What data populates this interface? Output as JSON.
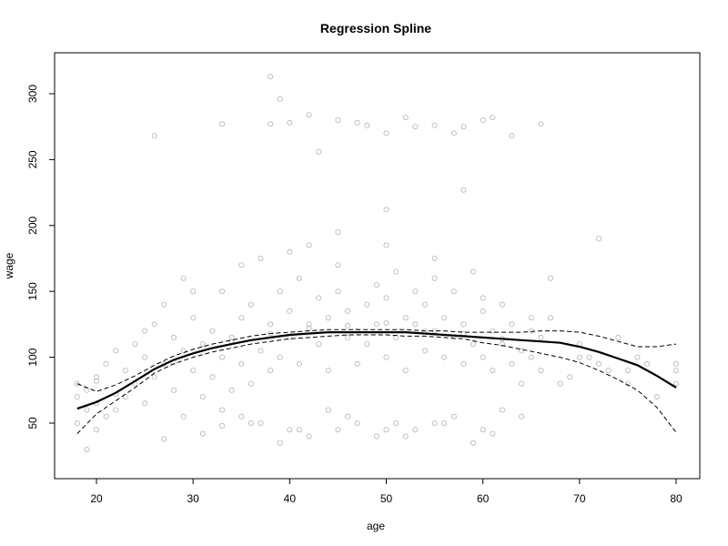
{
  "chart_data": {
    "type": "scatter",
    "title": "Regression Spline",
    "xlabel": "age",
    "ylabel": "wage",
    "xlim": [
      18,
      80
    ],
    "ylim": [
      20,
      320
    ],
    "x_ticks": [
      20,
      30,
      40,
      50,
      60,
      70,
      80
    ],
    "y_ticks": [
      50,
      100,
      150,
      200,
      250,
      300
    ],
    "grid": false,
    "legend": "none",
    "point_color": "#b3b3b3",
    "line_color": "#000000",
    "scatter_sample": {
      "x": [
        18,
        18,
        18,
        19,
        19,
        19,
        20,
        20,
        20,
        21,
        21,
        22,
        22,
        23,
        23,
        24,
        24,
        25,
        25,
        26,
        26,
        27,
        27,
        28,
        28,
        29,
        29,
        30,
        30,
        31,
        31,
        32,
        32,
        33,
        33,
        34,
        34,
        35,
        35,
        36,
        36,
        37,
        37,
        38,
        38,
        39,
        39,
        40,
        40,
        41,
        41,
        42,
        42,
        43,
        43,
        44,
        44,
        45,
        45,
        46,
        46,
        47,
        47,
        48,
        48,
        49,
        49,
        50,
        50,
        51,
        51,
        52,
        52,
        53,
        53,
        54,
        54,
        55,
        55,
        56,
        56,
        57,
        57,
        58,
        58,
        59,
        59,
        60,
        60,
        61,
        61,
        62,
        62,
        63,
        63,
        64,
        64,
        65,
        65,
        66,
        66,
        67,
        68,
        69,
        70,
        71,
        72,
        73,
        74,
        75,
        76,
        77,
        78,
        80,
        80,
        80,
        26,
        33,
        38,
        38,
        39,
        40,
        42,
        43,
        45,
        47,
        48,
        50,
        52,
        53,
        55,
        57,
        58,
        60,
        61,
        63,
        66,
        50,
        58,
        72,
        67,
        33,
        35,
        37,
        40,
        42,
        45,
        47,
        50,
        52,
        55,
        57,
        60,
        62,
        27,
        29,
        31,
        33,
        36,
        39,
        41,
        44,
        46,
        49,
        51,
        53,
        56,
        59,
        61,
        64,
        20,
        25,
        30,
        35,
        40,
        45,
        50,
        55,
        60,
        65,
        70,
        75,
        22,
        28,
        34,
        38,
        42,
        46,
        50,
        54,
        58,
        62
      ],
      "y": [
        70,
        50,
        80,
        60,
        30,
        75,
        65,
        85,
        45,
        95,
        55,
        60,
        105,
        70,
        90,
        80,
        110,
        100,
        65,
        85,
        125,
        95,
        140,
        75,
        115,
        105,
        160,
        90,
        130,
        110,
        70,
        120,
        85,
        100,
        150,
        115,
        75,
        130,
        95,
        140,
        80,
        105,
        175,
        125,
        90,
        150,
        100,
        135,
        115,
        160,
        95,
        125,
        185,
        110,
        145,
        130,
        90,
        150,
        170,
        115,
        135,
        120,
        95,
        140,
        110,
        155,
        125,
        100,
        145,
        115,
        165,
        130,
        90,
        125,
        150,
        105,
        140,
        120,
        175,
        100,
        130,
        115,
        150,
        95,
        125,
        110,
        165,
        100,
        135,
        120,
        90,
        110,
        140,
        95,
        125,
        105,
        80,
        120,
        100,
        115,
        90,
        130,
        80,
        85,
        110,
        100,
        95,
        90,
        115,
        80,
        100,
        95,
        70,
        80,
        90,
        95,
        268,
        277,
        313,
        277,
        296,
        278,
        284,
        256,
        280,
        278,
        276,
        270,
        282,
        275,
        276,
        270,
        275,
        280,
        282,
        268,
        277,
        212,
        227,
        190,
        160,
        60,
        55,
        50,
        45,
        40,
        45,
        50,
        45,
        40,
        50,
        55,
        45,
        60,
        38,
        55,
        42,
        48,
        50,
        35,
        45,
        60,
        55,
        40,
        50,
        45,
        50,
        35,
        42,
        55,
        82,
        120,
        150,
        170,
        180,
        195,
        185,
        160,
        145,
        130,
        100,
        90,
        72,
        96,
        112,
        118,
        122,
        124,
        126,
        120,
        118,
        114
      ]
    },
    "fit": {
      "name": "",
      "x": [
        18,
        20,
        22,
        24,
        26,
        28,
        30,
        32,
        34,
        36,
        38,
        40,
        42,
        44,
        46,
        48,
        50,
        52,
        54,
        56,
        58,
        60,
        62,
        64,
        66,
        68,
        70,
        72,
        74,
        76,
        78,
        80
      ],
      "y": [
        61,
        66,
        73,
        82,
        91,
        98,
        103,
        107,
        110,
        113,
        115,
        117,
        118,
        119,
        119,
        119,
        119,
        119,
        118,
        117,
        116,
        115,
        114,
        113,
        112,
        111,
        108,
        104,
        99,
        94,
        86,
        77
      ]
    },
    "upper_band": {
      "name": "",
      "x": [
        18,
        20,
        22,
        24,
        26,
        28,
        30,
        32,
        34,
        36,
        38,
        40,
        42,
        44,
        46,
        48,
        50,
        52,
        54,
        56,
        58,
        60,
        62,
        64,
        66,
        68,
        70,
        72,
        74,
        76,
        78,
        80
      ],
      "y": [
        80,
        74,
        79,
        86,
        94,
        101,
        106,
        110,
        113,
        116,
        118,
        119,
        120,
        121,
        121,
        121,
        121,
        121,
        120,
        120,
        119,
        119,
        119,
        119,
        120,
        120,
        119,
        116,
        112,
        108,
        108,
        110
      ]
    },
    "lower_band": {
      "name": "",
      "x": [
        18,
        20,
        22,
        24,
        26,
        28,
        30,
        32,
        34,
        36,
        38,
        40,
        42,
        44,
        46,
        48,
        50,
        52,
        54,
        56,
        58,
        60,
        62,
        64,
        66,
        68,
        70,
        72,
        74,
        76,
        78,
        80
      ],
      "y": [
        42,
        57,
        67,
        77,
        88,
        95,
        100,
        104,
        107,
        110,
        112,
        114,
        115,
        116,
        117,
        117,
        117,
        116,
        116,
        115,
        114,
        111,
        109,
        106,
        103,
        100,
        96,
        90,
        83,
        75,
        62,
        43
      ]
    }
  }
}
